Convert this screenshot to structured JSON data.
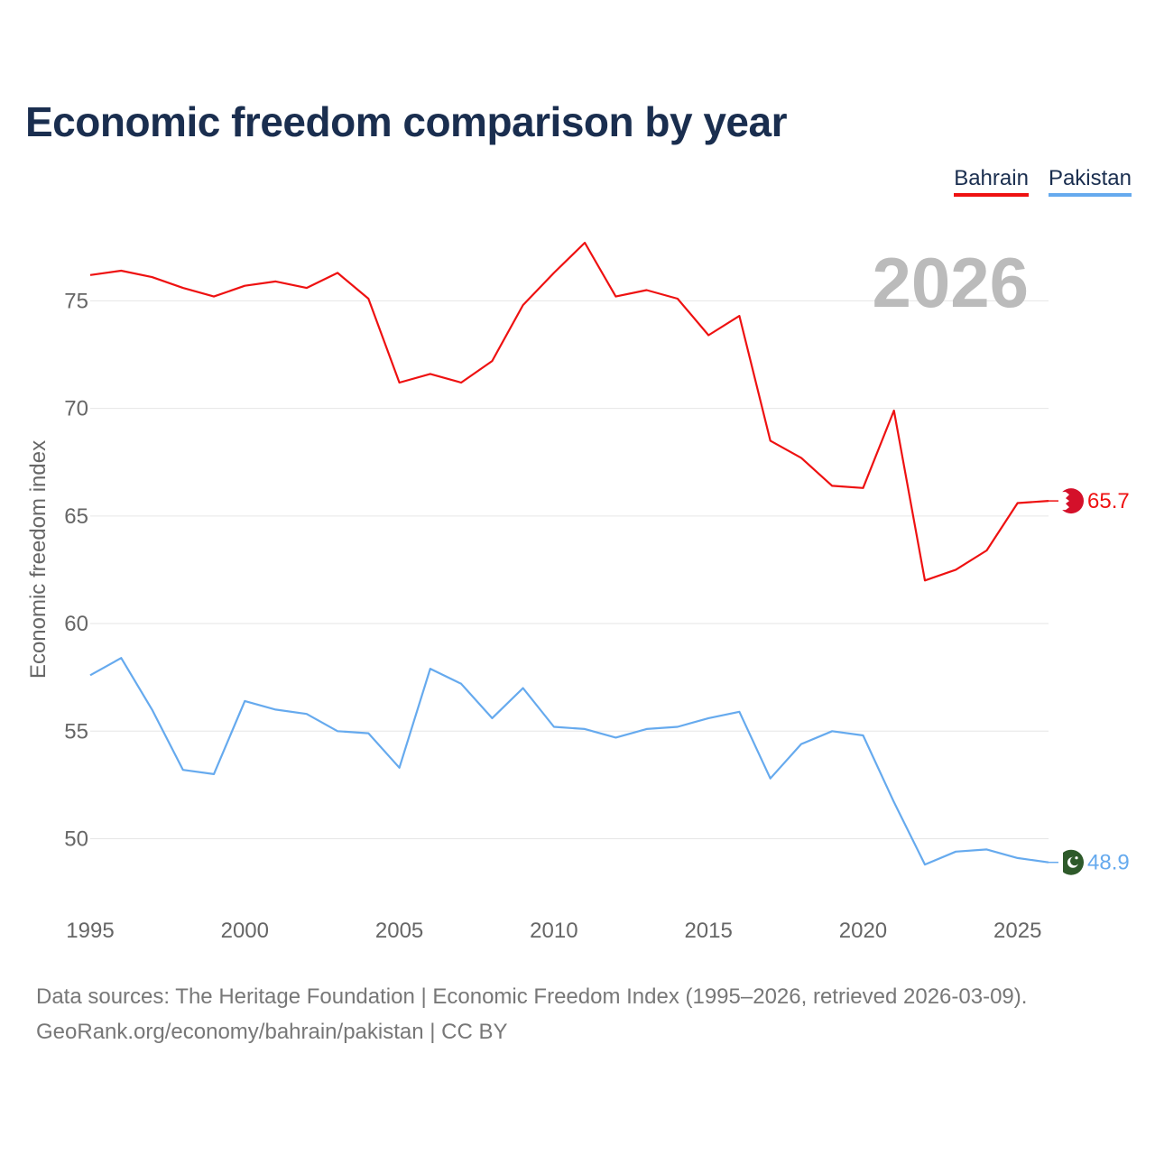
{
  "title": "Economic freedom comparison by year",
  "legend": [
    {
      "label": "Bahrain",
      "color": "#ee1111"
    },
    {
      "label": "Pakistan",
      "color": "#66aaee"
    }
  ],
  "year_overlay": "2026",
  "footer": {
    "line1": "Data sources: The Heritage Foundation | Economic Freedom Index (1995–2026, retrieved 2026-03-09).",
    "line2": "GeoRank.org/economy/bahrain/pakistan | CC BY"
  },
  "chart_data": {
    "type": "line",
    "title": "Economic freedom comparison by year",
    "xlabel": "",
    "ylabel": "Economic freedom index",
    "xlim": [
      1995,
      2026
    ],
    "ylim": [
      47,
      79
    ],
    "x_ticks": [
      1995,
      2000,
      2005,
      2010,
      2015,
      2020,
      2025
    ],
    "y_ticks": [
      50,
      55,
      60,
      65,
      70,
      75
    ],
    "grid": true,
    "legend_position": "top-right",
    "x": [
      1995,
      1996,
      1997,
      1998,
      1999,
      2000,
      2001,
      2002,
      2003,
      2004,
      2005,
      2006,
      2007,
      2008,
      2009,
      2010,
      2011,
      2012,
      2013,
      2014,
      2015,
      2016,
      2017,
      2018,
      2019,
      2020,
      2021,
      2022,
      2023,
      2024,
      2025,
      2026
    ],
    "series": [
      {
        "name": "Bahrain",
        "color": "#ee1111",
        "end_label": "65.7",
        "flag_icon": "bahrain-flag-icon",
        "values": [
          76.2,
          76.4,
          76.1,
          75.6,
          75.2,
          75.7,
          75.9,
          75.6,
          76.3,
          75.1,
          71.2,
          71.6,
          71.2,
          72.2,
          74.8,
          76.3,
          77.7,
          75.2,
          75.5,
          75.1,
          73.4,
          74.3,
          68.5,
          67.7,
          66.4,
          66.3,
          69.9,
          62.0,
          62.5,
          63.4,
          65.6,
          65.7
        ]
      },
      {
        "name": "Pakistan",
        "color": "#66aaee",
        "end_label": "48.9",
        "flag_icon": "pakistan-flag-icon",
        "values": [
          57.6,
          58.4,
          56.0,
          53.2,
          53.0,
          56.4,
          56.0,
          55.8,
          55.0,
          54.9,
          53.3,
          57.9,
          57.2,
          55.6,
          57.0,
          55.2,
          55.1,
          54.7,
          55.1,
          55.2,
          55.6,
          55.9,
          52.8,
          54.4,
          55.0,
          54.8,
          51.7,
          48.8,
          49.4,
          49.5,
          49.1,
          48.9
        ]
      }
    ]
  }
}
